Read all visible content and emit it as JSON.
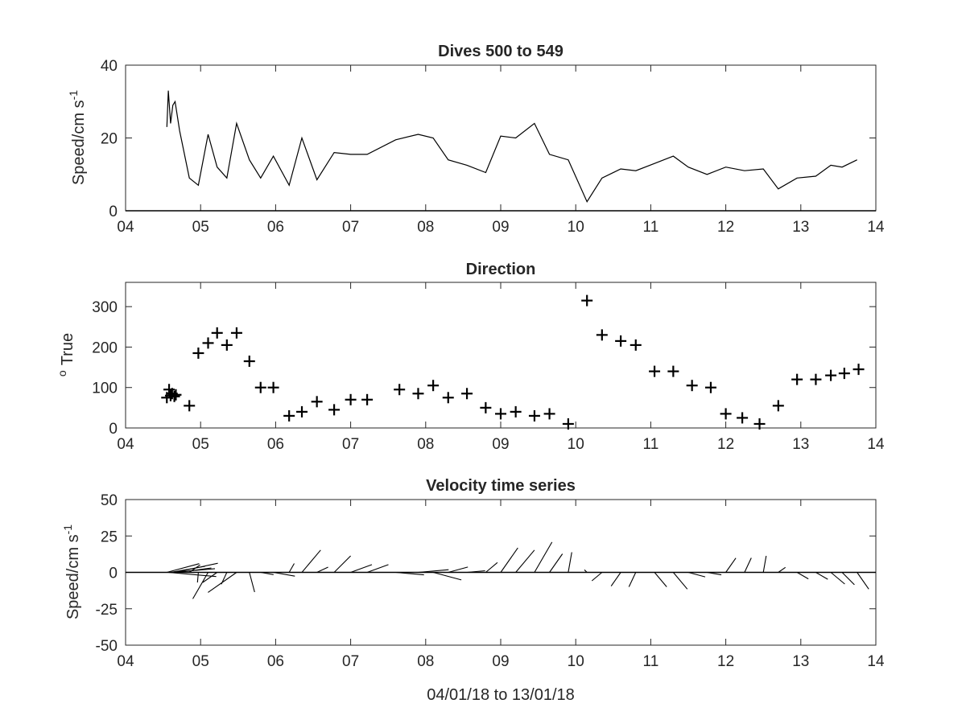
{
  "figure": {
    "xlabel": "04/01/18 to 13/01/18"
  },
  "chart_data": [
    {
      "type": "line",
      "title": "Dives 500 to 549",
      "ylabel": "Speed/cm s",
      "ylabel_superscript": "-1",
      "xlim": [
        4,
        14
      ],
      "ylim": [
        0,
        40
      ],
      "xticks": [
        4,
        5,
        6,
        7,
        8,
        9,
        10,
        11,
        12,
        13,
        14
      ],
      "xtick_labels": [
        "04",
        "05",
        "06",
        "07",
        "08",
        "09",
        "10",
        "11",
        "12",
        "13",
        "14"
      ],
      "yticks": [
        0,
        20,
        40
      ],
      "ytick_labels": [
        "0",
        "20",
        "40"
      ],
      "zero_line": true,
      "series": [
        {
          "x": [
            4.55,
            4.57,
            4.6,
            4.63,
            4.66,
            4.72,
            4.85,
            4.97,
            5.1,
            5.22,
            5.35,
            5.48,
            5.65,
            5.8,
            5.97,
            6.18,
            6.35,
            6.55,
            6.78,
            7.0,
            7.22,
            7.6,
            7.9,
            8.1,
            8.3,
            8.55,
            8.8,
            9.0,
            9.2,
            9.45,
            9.65,
            9.9,
            10.15,
            10.35,
            10.6,
            10.8,
            11.05,
            11.3,
            11.5,
            11.75,
            12.0,
            12.25,
            12.5,
            12.7,
            12.95,
            13.2,
            13.4,
            13.55,
            13.75
          ],
          "y": [
            23,
            33,
            24,
            29,
            30,
            22,
            9,
            7,
            21,
            12,
            9,
            24,
            14,
            9,
            15,
            7,
            20,
            8.5,
            16,
            15.5,
            15.5,
            19.5,
            21,
            20,
            14,
            12.5,
            10.5,
            20.5,
            20,
            24,
            15.5,
            14,
            2.5,
            9,
            11.5,
            11,
            13,
            15,
            12,
            10,
            12,
            11,
            11.5,
            6,
            9,
            9.5,
            12.5,
            12,
            14
          ]
        }
      ]
    },
    {
      "type": "scatter",
      "title": "Direction",
      "ylabel": "True",
      "ylabel_prefix_superscript": "o",
      "marker": "+",
      "xlim": [
        4,
        14
      ],
      "ylim": [
        0,
        360
      ],
      "xticks": [
        4,
        5,
        6,
        7,
        8,
        9,
        10,
        11,
        12,
        13,
        14
      ],
      "xtick_labels": [
        "04",
        "05",
        "06",
        "07",
        "08",
        "09",
        "10",
        "11",
        "12",
        "13",
        "14"
      ],
      "yticks": [
        0,
        100,
        200,
        300
      ],
      "ytick_labels": [
        "0",
        "100",
        "200",
        "300"
      ],
      "series": [
        {
          "x": [
            4.55,
            4.58,
            4.6,
            4.62,
            4.65,
            4.67,
            4.85,
            4.97,
            5.1,
            5.22,
            5.35,
            5.48,
            5.65,
            5.8,
            5.97,
            6.18,
            6.35,
            6.55,
            6.78,
            7.0,
            7.22,
            7.65,
            7.9,
            8.1,
            8.3,
            8.55,
            8.8,
            9.0,
            9.2,
            9.45,
            9.65,
            9.9,
            10.15,
            10.35,
            10.6,
            10.8,
            11.05,
            11.3,
            11.55,
            11.8,
            12.0,
            12.22,
            12.45,
            12.7,
            12.95,
            13.2,
            13.4,
            13.58,
            13.77
          ],
          "y": [
            75,
            95,
            80,
            85,
            78,
            82,
            55,
            185,
            210,
            235,
            205,
            235,
            165,
            100,
            100,
            30,
            40,
            65,
            45,
            70,
            70,
            95,
            85,
            105,
            75,
            85,
            50,
            35,
            40,
            30,
            35,
            10,
            315,
            230,
            215,
            205,
            140,
            140,
            105,
            100,
            35,
            25,
            10,
            55,
            120,
            120,
            130,
            135,
            145
          ]
        }
      ]
    },
    {
      "type": "quiver",
      "title": "Velocity time series",
      "ylabel": "Speed/cm s",
      "ylabel_superscript": "-1",
      "xlim": [
        4,
        14
      ],
      "ylim": [
        -50,
        50
      ],
      "xticks": [
        4,
        5,
        6,
        7,
        8,
        9,
        10,
        11,
        12,
        13,
        14
      ],
      "xtick_labels": [
        "04",
        "05",
        "06",
        "07",
        "08",
        "09",
        "10",
        "11",
        "12",
        "13",
        "14"
      ],
      "yticks": [
        -50,
        -25,
        0,
        25,
        50
      ],
      "ytick_labels": [
        "-50",
        "-25",
        "0",
        "25",
        "50"
      ],
      "zero_line": true,
      "speed_cm_s": [
        23,
        33,
        24,
        29,
        30,
        22,
        9,
        7,
        21,
        12,
        9,
        24,
        14,
        9,
        15,
        7,
        20,
        8.5,
        16,
        15.5,
        15.5,
        19.5,
        21,
        20,
        14,
        12.5,
        10.5,
        20.5,
        20,
        24,
        15.5,
        14,
        2.5,
        9,
        11.5,
        11,
        13,
        15,
        12,
        10,
        12,
        11,
        11.5,
        6,
        9,
        9.5,
        12.5,
        12,
        14
      ],
      "direction_deg_true": [
        75,
        95,
        80,
        85,
        78,
        82,
        55,
        185,
        210,
        235,
        205,
        235,
        165,
        100,
        100,
        30,
        40,
        65,
        45,
        70,
        70,
        95,
        85,
        105,
        75,
        85,
        50,
        35,
        40,
        30,
        35,
        10,
        315,
        230,
        215,
        205,
        140,
        140,
        105,
        100,
        35,
        25,
        10,
        55,
        120,
        120,
        130,
        135,
        145
      ],
      "x": [
        4.55,
        4.57,
        4.6,
        4.63,
        4.66,
        4.72,
        4.85,
        4.97,
        5.1,
        5.22,
        5.35,
        5.48,
        5.65,
        5.8,
        5.97,
        6.18,
        6.35,
        6.55,
        6.78,
        7.0,
        7.22,
        7.6,
        7.9,
        8.1,
        8.3,
        8.55,
        8.8,
        9.0,
        9.2,
        9.45,
        9.65,
        9.9,
        10.15,
        10.35,
        10.6,
        10.8,
        11.05,
        11.3,
        11.5,
        11.75,
        12.0,
        12.25,
        12.5,
        12.7,
        12.95,
        13.2,
        13.4,
        13.55,
        13.75
      ]
    }
  ]
}
